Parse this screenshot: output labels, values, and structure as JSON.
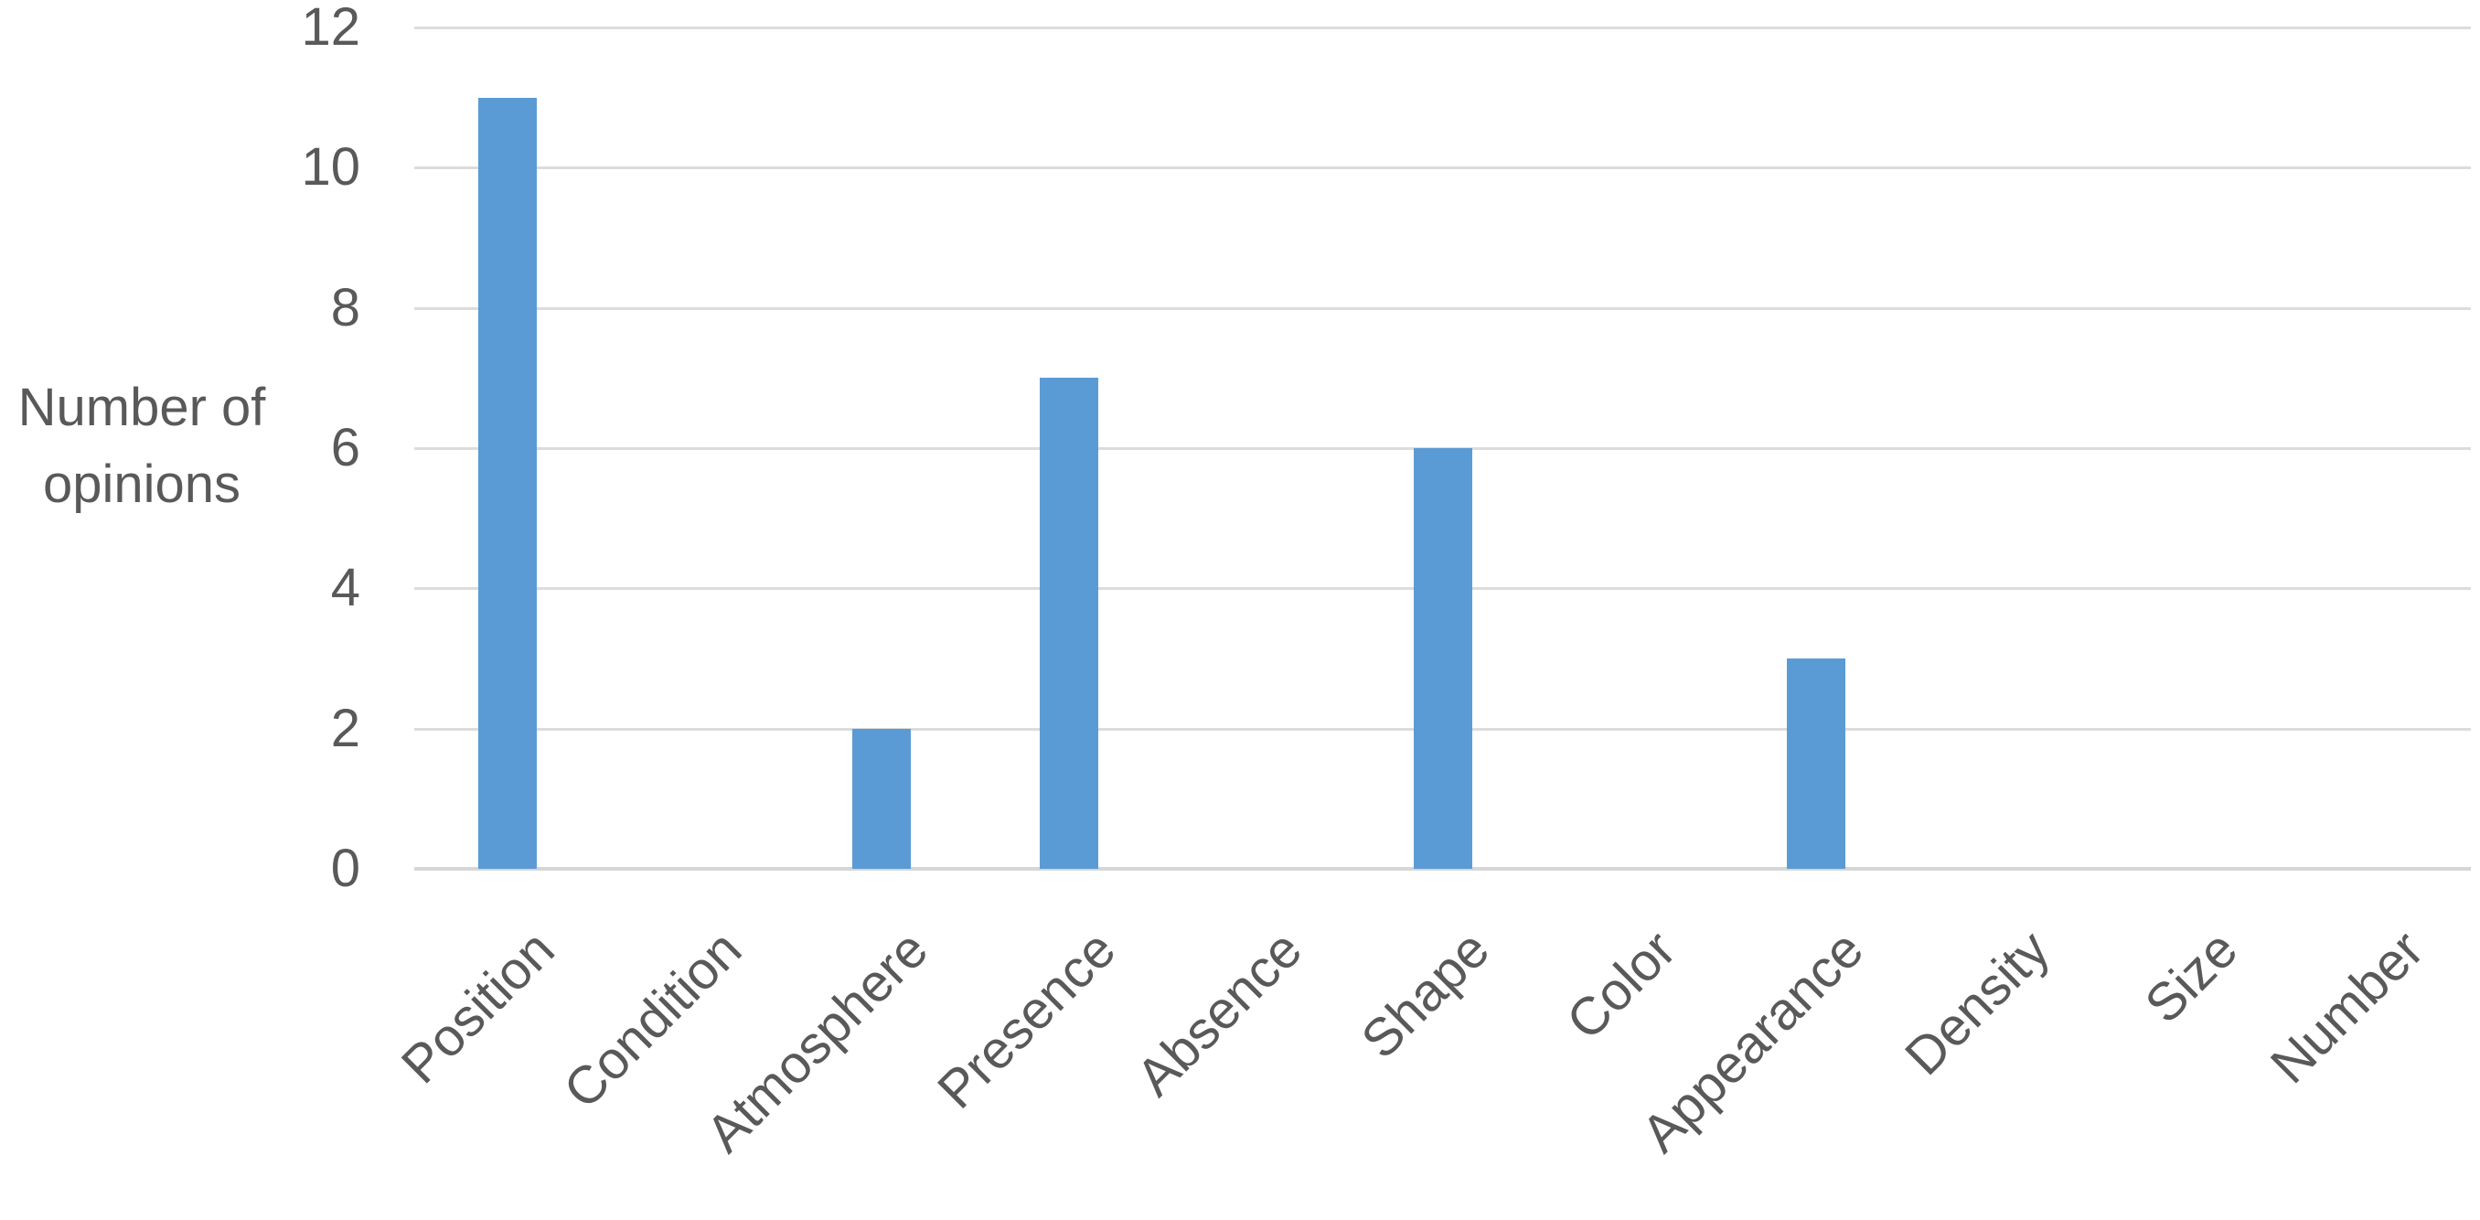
{
  "chart_data": {
    "type": "bar",
    "categories": [
      "Position",
      "Condition",
      "Atmosphere",
      "Presence",
      "Absence",
      "Shape",
      "Color",
      "Appearance",
      "Density",
      "Size",
      "Number"
    ],
    "values": [
      11,
      0,
      2,
      7,
      0,
      6,
      0,
      3,
      0,
      0,
      0
    ],
    "title": "",
    "xlabel": "",
    "ylabel": "Number of opinions",
    "ylim": [
      0,
      12
    ],
    "yticks": [
      0,
      2,
      4,
      6,
      8,
      10,
      12
    ],
    "grid": "horizontal",
    "legend": "none",
    "bar_color": "#5b9bd5",
    "text_color": "#595959",
    "gridline_color": "#dcdcdc",
    "axis_line_color": "#d6d6d6",
    "background_color": "#ffffff"
  }
}
